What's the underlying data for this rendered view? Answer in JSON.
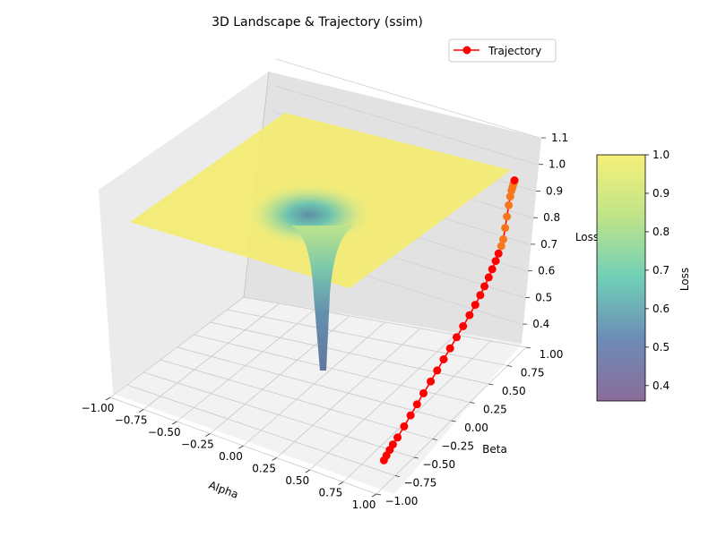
{
  "chart_data": {
    "type": "surface3d",
    "title": "3D Landscape & Trajectory (ssim)",
    "xlabel": "Alpha",
    "ylabel": "Beta",
    "zlabel": "Loss",
    "xlim": [
      -1.0,
      1.0
    ],
    "ylim": [
      -1.0,
      1.0
    ],
    "zlim": [
      0.36,
      1.1
    ],
    "xticks": [
      "−1.00",
      "−0.75",
      "−0.50",
      "−0.25",
      "0.00",
      "0.25",
      "0.50",
      "0.75",
      "1.00"
    ],
    "yticks": [
      "−1.00",
      "−0.75",
      "−0.50",
      "−0.25",
      "0.00",
      "0.25",
      "0.50",
      "0.75",
      "1.00"
    ],
    "zticks": [
      "0.4",
      "0.5",
      "0.6",
      "0.7",
      "0.8",
      "0.9",
      "1.0",
      "1.1"
    ],
    "surface": {
      "plateau_value": 1.0,
      "minimum_value": 0.36,
      "minimum_at": {
        "alpha": 0.0,
        "beta": 0.0
      },
      "colormap": "viridis"
    },
    "trajectory": {
      "name": "Trajectory",
      "color": "#ff0000",
      "marker": "circle",
      "points": [
        {
          "alpha": 0.85,
          "beta": -0.63,
          "loss": 0.36
        },
        {
          "alpha": 0.85,
          "beta": -0.6,
          "loss": 0.37
        },
        {
          "alpha": 0.85,
          "beta": -0.56,
          "loss": 0.38
        },
        {
          "alpha": 0.85,
          "beta": -0.52,
          "loss": 0.39
        },
        {
          "alpha": 0.85,
          "beta": -0.46,
          "loss": 0.4
        },
        {
          "alpha": 0.85,
          "beta": -0.38,
          "loss": 0.42
        },
        {
          "alpha": 0.85,
          "beta": -0.3,
          "loss": 0.44
        },
        {
          "alpha": 0.85,
          "beta": -0.22,
          "loss": 0.46
        },
        {
          "alpha": 0.85,
          "beta": -0.14,
          "loss": 0.48
        },
        {
          "alpha": 0.85,
          "beta": -0.05,
          "loss": 0.5
        },
        {
          "alpha": 0.85,
          "beta": 0.03,
          "loss": 0.52
        },
        {
          "alpha": 0.85,
          "beta": 0.11,
          "loss": 0.54
        },
        {
          "alpha": 0.85,
          "beta": 0.19,
          "loss": 0.56
        },
        {
          "alpha": 0.85,
          "beta": 0.27,
          "loss": 0.58
        },
        {
          "alpha": 0.85,
          "beta": 0.35,
          "loss": 0.6
        },
        {
          "alpha": 0.85,
          "beta": 0.43,
          "loss": 0.62
        },
        {
          "alpha": 0.85,
          "beta": 0.5,
          "loss": 0.64
        },
        {
          "alpha": 0.85,
          "beta": 0.56,
          "loss": 0.66
        },
        {
          "alpha": 0.85,
          "beta": 0.61,
          "loss": 0.68
        },
        {
          "alpha": 0.85,
          "beta": 0.66,
          "loss": 0.7
        },
        {
          "alpha": 0.85,
          "beta": 0.7,
          "loss": 0.72
        },
        {
          "alpha": 0.85,
          "beta": 0.74,
          "loss": 0.74
        },
        {
          "alpha": 0.85,
          "beta": 0.77,
          "loss": 0.76
        },
        {
          "alpha": 0.85,
          "beta": 0.8,
          "loss": 0.78
        },
        {
          "alpha": 0.85,
          "beta": 0.82,
          "loss": 0.8
        },
        {
          "alpha": 0.85,
          "beta": 0.83,
          "loss": 0.84
        },
        {
          "alpha": 0.85,
          "beta": 0.84,
          "loss": 0.88
        },
        {
          "alpha": 0.85,
          "beta": 0.85,
          "loss": 0.92
        },
        {
          "alpha": 0.85,
          "beta": 0.86,
          "loss": 0.95
        },
        {
          "alpha": 0.85,
          "beta": 0.87,
          "loss": 0.97
        },
        {
          "alpha": 0.85,
          "beta": 0.88,
          "loss": 0.98
        },
        {
          "alpha": 0.85,
          "beta": 0.89,
          "loss": 0.99
        },
        {
          "alpha": 0.85,
          "beta": 0.9,
          "loss": 1.0
        }
      ]
    },
    "legend": {
      "entries": [
        "Trajectory"
      ],
      "placement": "top-right"
    },
    "colorbar": {
      "label": "Loss",
      "min": 0.36,
      "max": 1.0,
      "ticks": [
        "0.4",
        "0.5",
        "0.6",
        "0.7",
        "0.8",
        "0.9",
        "1.0"
      ],
      "colormap": "viridis"
    },
    "grid": true
  }
}
